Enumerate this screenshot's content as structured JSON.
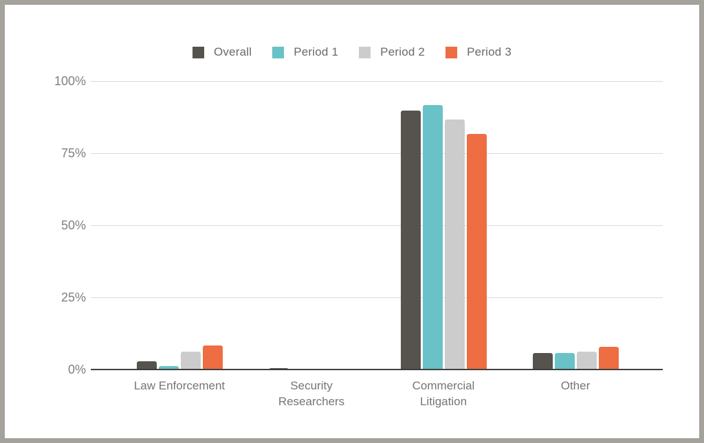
{
  "frame": {
    "border_color": "#a4a29a",
    "background_color": "#ffffff"
  },
  "chart_data": {
    "type": "bar",
    "title": "",
    "xlabel": "",
    "ylabel": "",
    "categories": [
      "Law Enforcement",
      "Security Researchers",
      "Commercial Litigation",
      "Other"
    ],
    "series": [
      {
        "name": "Overall",
        "color": "#56534e",
        "values": [
          3,
          0.6,
          90,
          6
        ]
      },
      {
        "name": "Period 1",
        "color": "#68c2c7",
        "values": [
          1.5,
          0.4,
          92,
          6
        ]
      },
      {
        "name": "Period 2",
        "color": "#cccccc",
        "values": [
          6.5,
          0.4,
          87,
          6.5
        ]
      },
      {
        "name": "Period 3",
        "color": "#ee6d42",
        "values": [
          8.5,
          0.2,
          82,
          8
        ]
      }
    ],
    "ylim": [
      0,
      100
    ],
    "yticks": [
      0,
      25,
      50,
      75,
      100
    ],
    "ytick_labels": [
      "0%",
      "25%",
      "50%",
      "75%",
      "100%"
    ],
    "grid": true,
    "legend_position": "top",
    "axis_color": "#3f3f3f",
    "gridline_color": "#d9d9d9",
    "tick_label_color": "#808080"
  }
}
